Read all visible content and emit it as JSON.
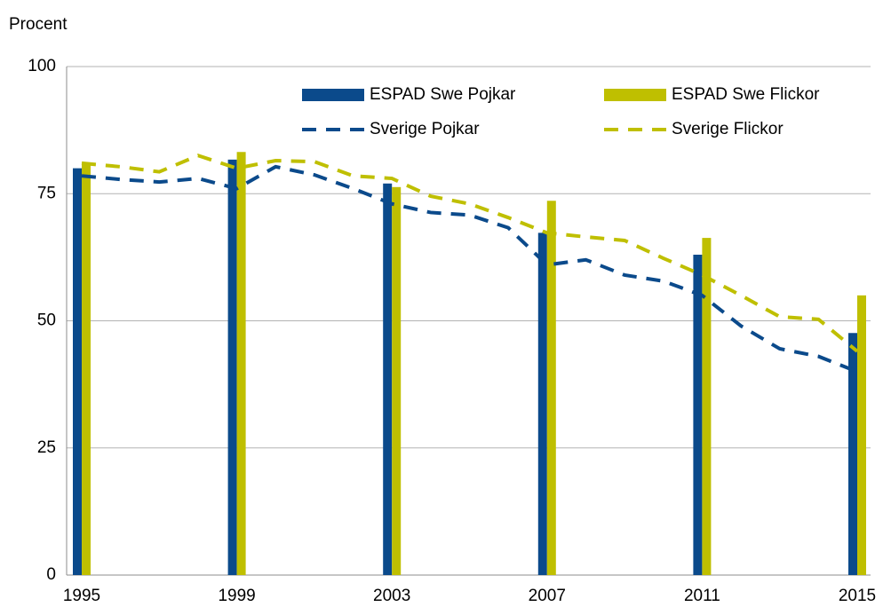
{
  "chart_data": {
    "type": "bar",
    "y_label": "Procent",
    "xlim": [
      1995,
      2015
    ],
    "xticks": [
      1995,
      1999,
      2003,
      2007,
      2011,
      2015
    ],
    "ylim": [
      0,
      100
    ],
    "yticks": [
      0,
      25,
      50,
      75,
      100
    ],
    "grid": true,
    "legend": "top-right",
    "series": [
      {
        "name": "ESPAD Swe Pojkar",
        "type": "bar",
        "color": "#0b4a8b",
        "x": [
          1995,
          1999,
          2003,
          2007,
          2011,
          2015
        ],
        "values": [
          80,
          81.7,
          77,
          67.3,
          63,
          47.6
        ]
      },
      {
        "name": "ESPAD Swe Flickor",
        "type": "bar",
        "color": "#bfbf00",
        "x": [
          1995,
          1999,
          2003,
          2007,
          2011,
          2015
        ],
        "values": [
          80.8,
          83.2,
          76.3,
          73.6,
          66.3,
          55
        ]
      },
      {
        "name": "Sverige Pojkar",
        "type": "line",
        "color": "#0b4a8b",
        "x": [
          1995,
          1996,
          1997,
          1998,
          1999,
          2000,
          2001,
          2002,
          2003,
          2004,
          2005,
          2006,
          2007,
          2008,
          2009,
          2010,
          2011,
          2012,
          2013,
          2014,
          2015
        ],
        "values": [
          78.5,
          77.8,
          77.3,
          78,
          76,
          80.3,
          78.7,
          76,
          73,
          71.3,
          70.8,
          68.3,
          61,
          62,
          59,
          57.8,
          55,
          49,
          44.5,
          43,
          40
        ]
      },
      {
        "name": "Sverige Flickor",
        "type": "line",
        "color": "#bfbf00",
        "x": [
          1995,
          1996,
          1997,
          1998,
          1999,
          2000,
          2001,
          2002,
          2003,
          2004,
          2005,
          2006,
          2007,
          2008,
          2009,
          2010,
          2011,
          2012,
          2013,
          2014,
          2015
        ],
        "values": [
          81,
          80.3,
          79.3,
          82.5,
          80,
          81.5,
          81.3,
          78.5,
          78,
          74.5,
          73,
          70.3,
          67.3,
          66.5,
          65.8,
          62.3,
          59,
          55,
          50.8,
          50.3,
          44
        ]
      }
    ]
  }
}
